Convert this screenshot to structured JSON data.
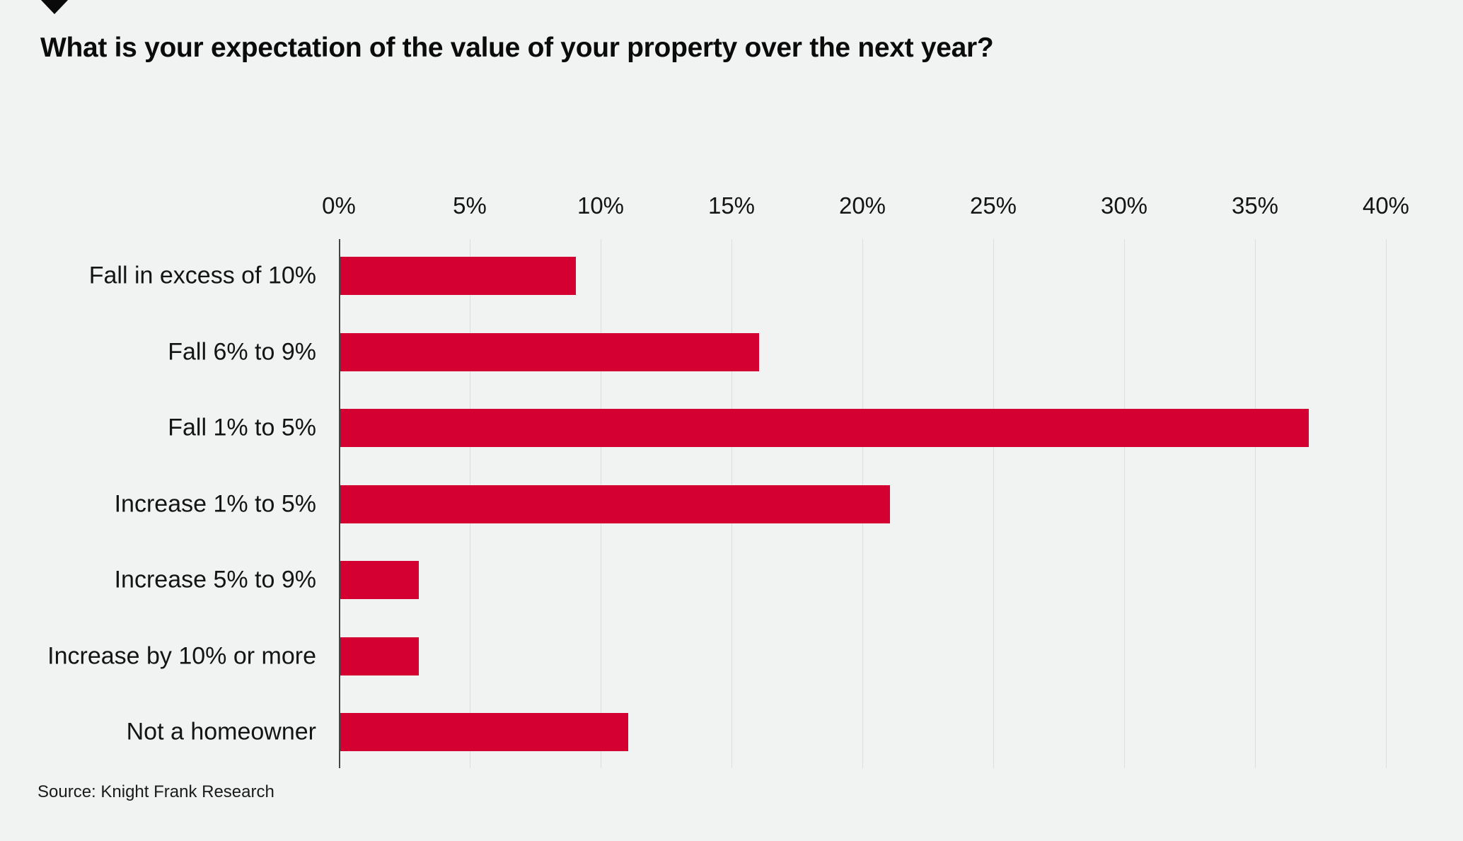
{
  "title": "What is your expectation of the value of your property over the next year?",
  "source": "Source: Knight Frank Research",
  "icons": {
    "pointer": "down-triangle-icon"
  },
  "colors": {
    "background": "#f0f3f1",
    "bar": "#d50032",
    "gridline": "#dadedc",
    "axis": "#454545",
    "text": "#141414"
  },
  "chart_data": {
    "type": "bar",
    "orientation": "horizontal",
    "title": "What is your expectation of the value of your property over the next year?",
    "categories": [
      "Fall in excess of 10%",
      "Fall 6% to 9%",
      "Fall 1% to 5%",
      "Increase 1% to 5%",
      "Increase 5% to 9%",
      "Increase by 10% or more",
      "Not a homeowner"
    ],
    "values": [
      9,
      16,
      37,
      21,
      3,
      3,
      11
    ],
    "unit": "%",
    "xlabel": "",
    "ylabel": "",
    "xlim": [
      0,
      40
    ],
    "x_ticks": [
      "0%",
      "5%",
      "10%",
      "15%",
      "20%",
      "25%",
      "30%",
      "35%",
      "40%"
    ],
    "x_tick_values": [
      0,
      5,
      10,
      15,
      20,
      25,
      30,
      35,
      40
    ],
    "grid": true,
    "legend": false,
    "bar_color": "#d50032",
    "source": "Source: Knight Frank Research"
  }
}
